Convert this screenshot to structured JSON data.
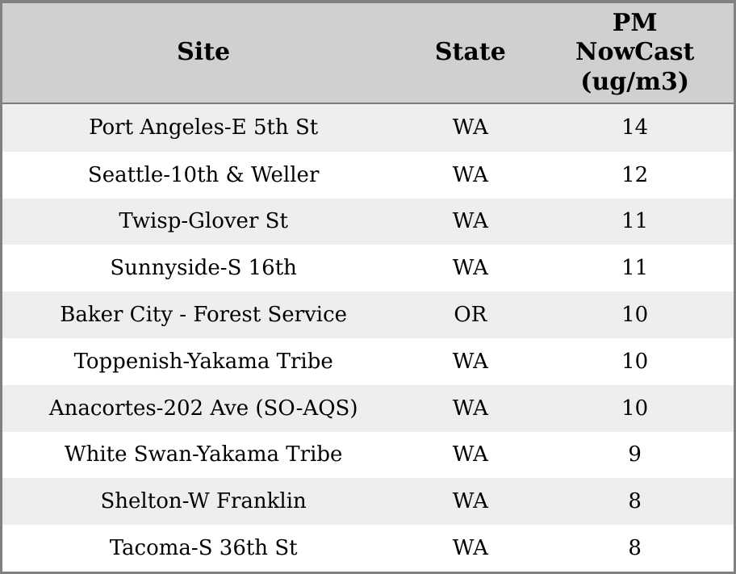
{
  "colors": {
    "header_bg": "#d0d0d0",
    "row_stripe": "#eeeeee",
    "row_plain": "#ffffff",
    "border": "#808080",
    "text": "#000000"
  },
  "table": {
    "columns": [
      {
        "label": "Site"
      },
      {
        "label": "State"
      },
      {
        "label": "PM NowCast (ug/m3)"
      }
    ],
    "rows": [
      {
        "site": "Port Angeles-E 5th St",
        "state": "WA",
        "pm_nowcast": 14
      },
      {
        "site": "Seattle-10th & Weller",
        "state": "WA",
        "pm_nowcast": 12
      },
      {
        "site": "Twisp-Glover St",
        "state": "WA",
        "pm_nowcast": 11
      },
      {
        "site": "Sunnyside-S 16th",
        "state": "WA",
        "pm_nowcast": 11
      },
      {
        "site": "Baker City - Forest Service",
        "state": "OR",
        "pm_nowcast": 10
      },
      {
        "site": "Toppenish-Yakama Tribe",
        "state": "WA",
        "pm_nowcast": 10
      },
      {
        "site": "Anacortes-202 Ave (SO-AQS)",
        "state": "WA",
        "pm_nowcast": 10
      },
      {
        "site": "White Swan-Yakama Tribe",
        "state": "WA",
        "pm_nowcast": 9
      },
      {
        "site": "Shelton-W Franklin",
        "state": "WA",
        "pm_nowcast": 8
      },
      {
        "site": "Tacoma-S 36th St",
        "state": "WA",
        "pm_nowcast": 8
      }
    ]
  },
  "chart_data": {
    "type": "table",
    "columns": [
      "Site",
      "State",
      "PM NowCast (ug/m3)"
    ],
    "rows": [
      [
        "Port Angeles-E 5th St",
        "WA",
        14
      ],
      [
        "Seattle-10th & Weller",
        "WA",
        12
      ],
      [
        "Twisp-Glover St",
        "WA",
        11
      ],
      [
        "Sunnyside-S 16th",
        "WA",
        11
      ],
      [
        "Baker City - Forest Service",
        "OR",
        10
      ],
      [
        "Toppenish-Yakama Tribe",
        "WA",
        10
      ],
      [
        "Anacortes-202 Ave (SO-AQS)",
        "WA",
        10
      ],
      [
        "White Swan-Yakama Tribe",
        "WA",
        9
      ],
      [
        "Shelton-W Franklin",
        "WA",
        8
      ],
      [
        "Tacoma-S 36th St",
        "WA",
        8
      ]
    ]
  }
}
